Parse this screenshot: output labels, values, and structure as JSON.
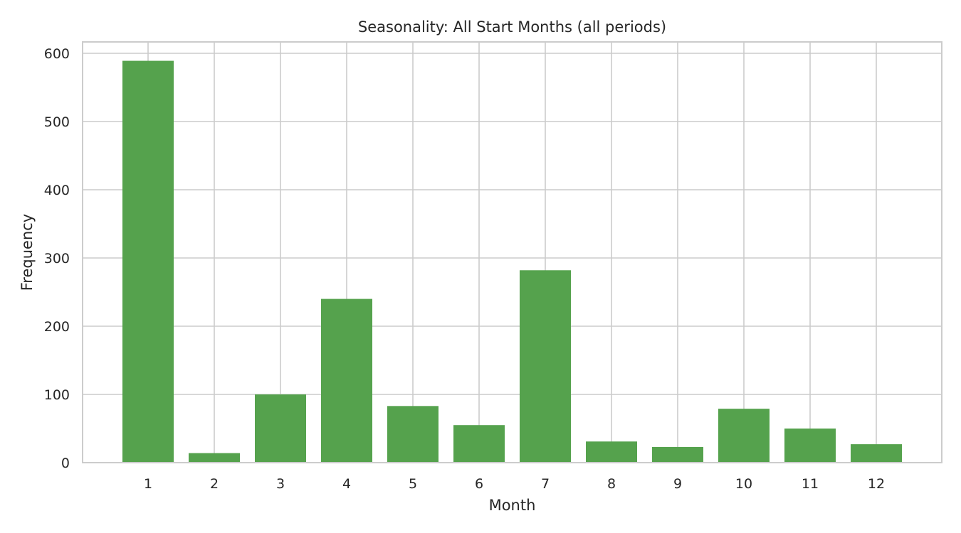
{
  "chart_data": {
    "type": "bar",
    "title": "Seasonality: All Start Months (all periods)",
    "xlabel": "Month",
    "ylabel": "Frequency",
    "categories": [
      "1",
      "2",
      "3",
      "4",
      "5",
      "6",
      "7",
      "8",
      "9",
      "10",
      "11",
      "12"
    ],
    "values": [
      589,
      14,
      100,
      240,
      83,
      55,
      282,
      31,
      23,
      79,
      50,
      27
    ],
    "ylim": [
      0,
      620
    ],
    "yticks": [
      0,
      100,
      200,
      300,
      400,
      500,
      600
    ],
    "grid": true,
    "colors": {
      "bar": "#55a24d",
      "grid": "#cccccc",
      "frame": "#cccccc",
      "text": "#262626"
    }
  }
}
